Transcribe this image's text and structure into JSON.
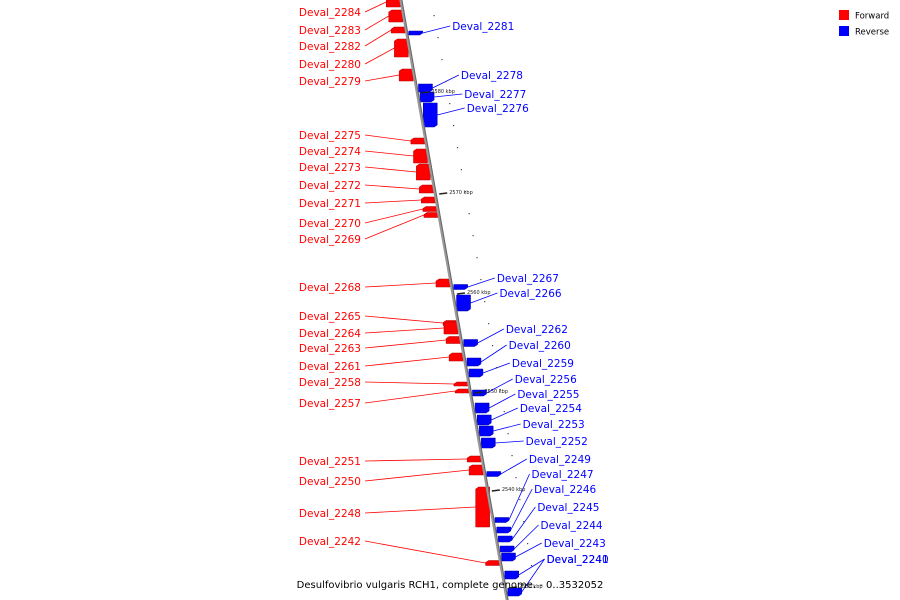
{
  "legend": {
    "forward_label": "Forward",
    "reverse_label": "Reverse",
    "forward_color": "#ff0000",
    "reverse_color": "#0000ff"
  },
  "caption": "Desulfovibrio vulgaris RCH1, complete genome. - 0..3532052",
  "scale_ticks": [
    "2580 kbp",
    "2570 kbp",
    "2560 kbp",
    "2550 kbp",
    "2540 kbp",
    "2530 kbp"
  ],
  "forward_genes": [
    "Deval_2284",
    "Deval_2283",
    "Deval_2282",
    "Deval_2280",
    "Deval_2279",
    "Deval_2275",
    "Deval_2274",
    "Deval_2273",
    "Deval_2272",
    "Deval_2271",
    "Deval_2270",
    "Deval_2269",
    "Deval_2268",
    "Deval_2265",
    "Deval_2264",
    "Deval_2263",
    "Deval_2261",
    "Deval_2258",
    "Deval_2257",
    "Deval_2251",
    "Deval_2250",
    "Deval_2248",
    "Deval_2242"
  ],
  "reverse_genes": [
    "Deval_2281",
    "Deval_2278",
    "Deval_2277",
    "Deval_2276",
    "Deval_2267",
    "Deval_2266",
    "Deval_2262",
    "Deval_2260",
    "Deval_2259",
    "Deval_2256",
    "Deval_2255",
    "Deval_2254",
    "Deval_2253",
    "Deval_2252",
    "Deval_2249",
    "Deval_2247",
    "Deval_2246",
    "Deval_2245",
    "Deval_2244",
    "Deval_2243",
    "Deval_2241",
    "Deval_2240"
  ]
}
